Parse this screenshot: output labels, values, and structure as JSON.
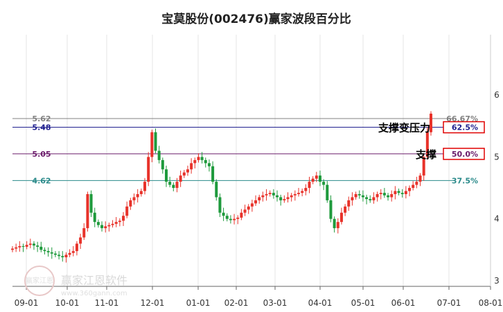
{
  "chart_data": {
    "type": "candlestick",
    "title": "宝莫股份(002476)赢家波段百分比",
    "x_ticks": [
      "09-01",
      "10-01",
      "11-01",
      "12-01",
      "01-01",
      "02-01",
      "03-01",
      "04-01",
      "05-01",
      "06-01",
      "07-01",
      "08-01"
    ],
    "y_ticks": [
      "3",
      "4",
      "5",
      "6"
    ],
    "ylim": [
      3.0,
      6.0
    ],
    "levels": [
      {
        "price_label": "5.62",
        "price": 5.62,
        "pct_label": "66.67%",
        "color": "#808080",
        "boxed": false
      },
      {
        "price_label": "5.48",
        "price": 5.48,
        "pct_label": "62.5%",
        "color": "#1f1f8f",
        "boxed": true
      },
      {
        "price_label": "5.05",
        "price": 5.05,
        "pct_label": "50.0%",
        "color": "#6a1b6a",
        "boxed": true
      },
      {
        "price_label": "4.62",
        "price": 4.62,
        "pct_label": "37.5%",
        "color": "#2a8a8a",
        "boxed": false
      }
    ],
    "annotations": [
      {
        "text": "支撑变压力",
        "level_price": 5.48
      },
      {
        "text": "支撑",
        "level_price": 5.05
      }
    ],
    "series_close": [
      3.52,
      3.54,
      3.56,
      3.55,
      3.58,
      3.6,
      3.57,
      3.55,
      3.5,
      3.48,
      3.46,
      3.44,
      3.42,
      3.4,
      3.38,
      3.42,
      3.45,
      3.48,
      3.6,
      3.7,
      3.85,
      4.4,
      4.1,
      3.95,
      3.9,
      3.85,
      3.88,
      3.9,
      3.92,
      3.95,
      3.97,
      4.05,
      4.2,
      4.3,
      4.35,
      4.4,
      4.45,
      4.6,
      5.0,
      5.4,
      5.1,
      4.95,
      4.8,
      4.6,
      4.55,
      4.5,
      4.6,
      4.7,
      4.75,
      4.8,
      4.9,
      4.95,
      5.0,
      4.95,
      4.9,
      4.85,
      4.6,
      4.35,
      4.1,
      4.05,
      4.0,
      3.98,
      4.0,
      4.02,
      4.1,
      4.15,
      4.2,
      4.25,
      4.3,
      4.35,
      4.38,
      4.4,
      4.42,
      4.38,
      4.35,
      4.3,
      4.32,
      4.35,
      4.38,
      4.4,
      4.42,
      4.45,
      4.5,
      4.6,
      4.65,
      4.7,
      4.6,
      4.55,
      4.3,
      4.0,
      3.85,
      3.95,
      4.1,
      4.2,
      4.3,
      4.35,
      4.4,
      4.38,
      4.35,
      4.32,
      4.3,
      4.35,
      4.4,
      4.42,
      4.38,
      4.35,
      4.4,
      4.45,
      4.42,
      4.4,
      4.45,
      4.5,
      4.55,
      4.6,
      4.7,
      5.0,
      5.4,
      5.7
    ],
    "watermark": "赢家江恩软件",
    "watermark_url": "www.360gann.com",
    "watermark_seal": "赢家江恩"
  }
}
